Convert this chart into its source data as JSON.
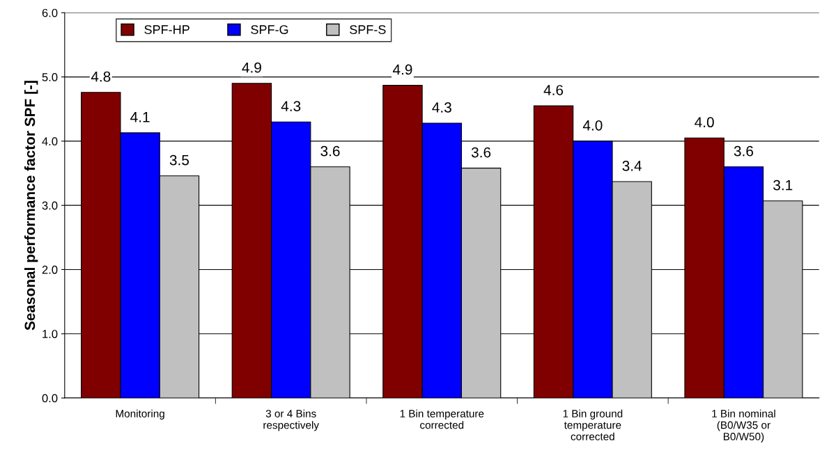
{
  "chart_data": {
    "type": "bar",
    "ylabel": "Seasonal performance factor SPF [-]",
    "categories": [
      "Monitoring",
      "3 or 4 Bins\nrespectively",
      "1 Bin temperature\ncorrected",
      "1 Bin ground\ntemperature\ncorrected",
      "1 Bin nominal\n(B0/W35 or\nB0/W50)"
    ],
    "series": [
      {
        "name": "SPF-HP",
        "color": "#800000",
        "values": [
          4.76,
          4.9,
          4.87,
          4.55,
          4.05
        ],
        "value_labels": [
          "4.8",
          "4.9",
          "4.9",
          "4.6",
          "4.0"
        ]
      },
      {
        "name": "SPF-G",
        "color": "#0000ff",
        "values": [
          4.13,
          4.3,
          4.28,
          4.0,
          3.6
        ],
        "value_labels": [
          "4.1",
          "4.3",
          "4.3",
          "4.0",
          "3.6"
        ]
      },
      {
        "name": "SPF-S",
        "color": "#c0c0c0",
        "values": [
          3.46,
          3.6,
          3.58,
          3.37,
          3.07
        ],
        "value_labels": [
          "3.5",
          "3.6",
          "3.6",
          "3.4",
          "3.1"
        ]
      }
    ],
    "ylim": [
      0,
      6
    ],
    "yticks": [
      {
        "value": 0,
        "label": "0.0"
      },
      {
        "value": 1,
        "label": "1.0"
      },
      {
        "value": 2,
        "label": "2.0"
      },
      {
        "value": 3,
        "label": "3.0"
      },
      {
        "value": 4,
        "label": "4.0"
      },
      {
        "value": 5,
        "label": "5.0"
      },
      {
        "value": 6,
        "label": "6.0"
      }
    ],
    "grid": "y",
    "legend": "top left"
  }
}
